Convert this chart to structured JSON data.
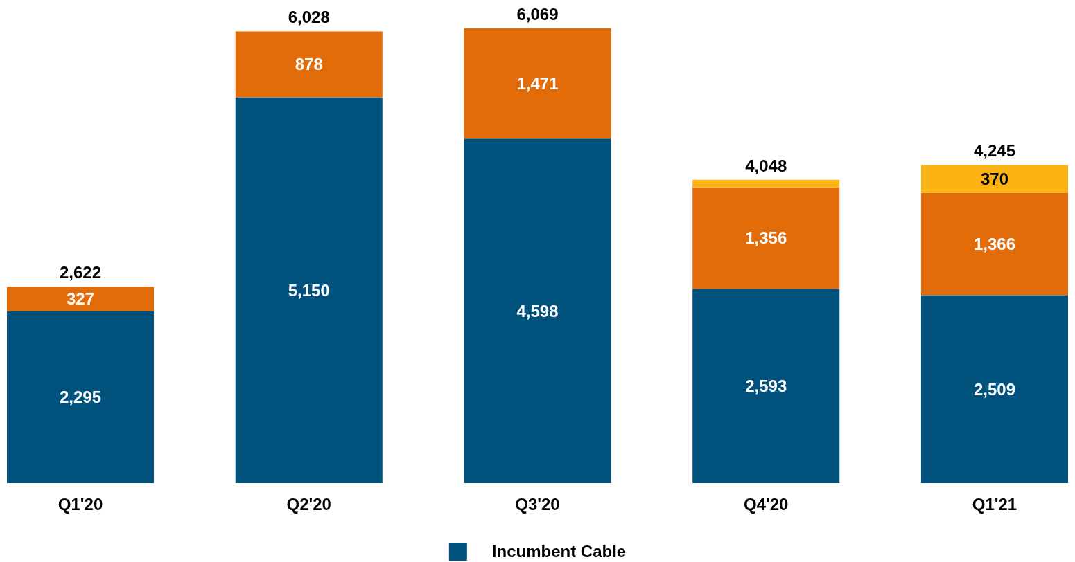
{
  "chart_data": {
    "type": "bar",
    "stacked": true,
    "categories": [
      "Q1'20",
      "Q2'20",
      "Q3'20",
      "Q4'20",
      "Q1'21"
    ],
    "series": [
      {
        "name": "Incumbent Cable",
        "color": "#00527d",
        "values": [
          2295,
          5150,
          4598,
          2593,
          2509
        ],
        "value_labels": [
          "2,295",
          "5,150",
          "4,598",
          "2,593",
          "2,509"
        ]
      },
      {
        "color": "#e36c0a",
        "values": [
          327,
          878,
          1471,
          1356,
          1366
        ],
        "value_labels": [
          "327",
          "878",
          "1,471",
          "1,356",
          "1,366"
        ]
      },
      {
        "color": "#fcb415",
        "values": [
          null,
          null,
          null,
          99,
          370
        ],
        "value_labels": [
          null,
          null,
          null,
          null,
          "370"
        ]
      }
    ],
    "totals": [
      "2,622",
      "6,028",
      "6,069",
      "4,048",
      "4,245"
    ],
    "legend": "bottom"
  }
}
